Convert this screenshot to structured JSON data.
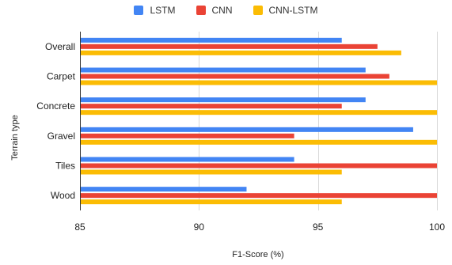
{
  "chart_data": {
    "type": "bar",
    "orientation": "horizontal",
    "title": "",
    "xlabel": "F1-Score (%)",
    "ylabel": "Terrain type",
    "xlim": [
      85,
      100
    ],
    "xticks": [
      85,
      90,
      95,
      100
    ],
    "grid": true,
    "legend_position": "top",
    "categories": [
      "Overall",
      "Carpet",
      "Concrete",
      "Gravel",
      "Tiles",
      "Wood"
    ],
    "series": [
      {
        "name": "LSTM",
        "color": "#4285F4",
        "values": [
          96.0,
          97.0,
          97.0,
          99.0,
          94.0,
          92.0
        ]
      },
      {
        "name": "CNN",
        "color": "#EA4335",
        "values": [
          97.5,
          98.0,
          96.0,
          94.0,
          100.0,
          100.0
        ]
      },
      {
        "name": "CNN-LSTM",
        "color": "#FBBC04",
        "values": [
          98.5,
          100.0,
          100.0,
          100.0,
          96.0,
          96.0
        ]
      }
    ]
  }
}
